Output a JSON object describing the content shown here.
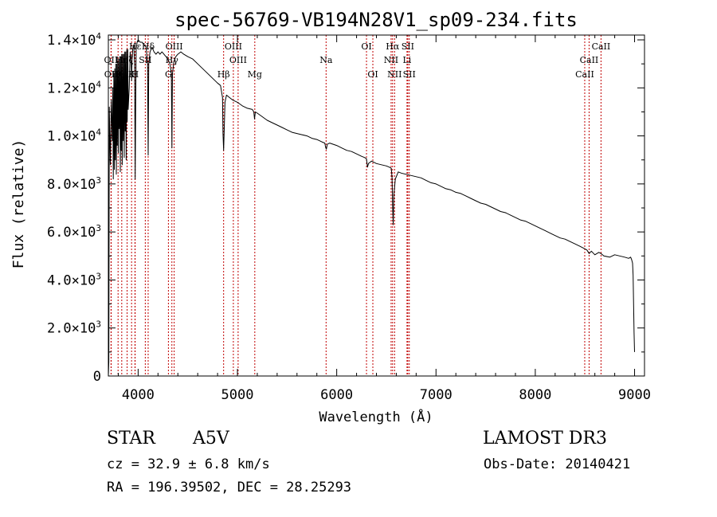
{
  "chart_data": {
    "type": "line",
    "title": "spec-56769-VB194N28V1_sp09-234.fits",
    "xlabel": "Wavelength (Å)",
    "ylabel": "Flux (relative)",
    "xlim": [
      3700,
      9100
    ],
    "ylim": [
      0,
      14200
    ],
    "x_ticks": [
      4000,
      5000,
      6000,
      7000,
      8000,
      9000
    ],
    "x_tick_labels": [
      "4000",
      "5000",
      "6000",
      "7000",
      "8000",
      "9000"
    ],
    "y_ticks": [
      0,
      2000,
      4000,
      6000,
      8000,
      10000,
      12000,
      14000
    ],
    "y_tick_labels": [
      {
        "mant": "0",
        "exp": ""
      },
      {
        "mant": "2.0×10",
        "exp": "3"
      },
      {
        "mant": "4.0×10",
        "exp": "3"
      },
      {
        "mant": "6.0×10",
        "exp": "3"
      },
      {
        "mant": "8.0×10",
        "exp": "3"
      },
      {
        "mant": "1.0×10",
        "exp": "4"
      },
      {
        "mant": "1.2×10",
        "exp": "4"
      },
      {
        "mant": "1.4×10",
        "exp": "4"
      }
    ],
    "series": [
      {
        "name": "spectrum",
        "x": [
          3700,
          3705,
          3710,
          3720,
          3730,
          3740,
          3745,
          3750,
          3755,
          3760,
          3765,
          3770,
          3775,
          3780,
          3785,
          3790,
          3795,
          3800,
          3805,
          3810,
          3815,
          3820,
          3825,
          3830,
          3835,
          3840,
          3845,
          3850,
          3855,
          3860,
          3865,
          3870,
          3875,
          3880,
          3885,
          3890,
          3895,
          3900,
          3910,
          3920,
          3930,
          3934,
          3938,
          3945,
          3955,
          3965,
          3970,
          3975,
          3980,
          3990,
          4000,
          4020,
          4040,
          4060,
          4080,
          4095,
          4101,
          4107,
          4120,
          4140,
          4160,
          4180,
          4200,
          4220,
          4240,
          4260,
          4280,
          4300,
          4320,
          4335,
          4340,
          4346,
          4360,
          4380,
          4400,
          4430,
          4460,
          4500,
          4550,
          4600,
          4650,
          4700,
          4750,
          4800,
          4830,
          4850,
          4855,
          4861,
          4867,
          4875,
          4890,
          4920,
          4950,
          5000,
          5050,
          5100,
          5150,
          5165,
          5172,
          5180,
          5200,
          5250,
          5300,
          5350,
          5400,
          5450,
          5500,
          5550,
          5600,
          5650,
          5700,
          5750,
          5800,
          5850,
          5880,
          5890,
          5896,
          5905,
          5930,
          6000,
          6050,
          6100,
          6150,
          6200,
          6250,
          6280,
          6300,
          6310,
          6320,
          6350,
          6400,
          6450,
          6500,
          6530,
          6550,
          6557,
          6563,
          6569,
          6575,
          6590,
          6620,
          6650,
          6700,
          6750,
          6800,
          6850,
          6900,
          6950,
          7000,
          7050,
          7100,
          7150,
          7200,
          7250,
          7300,
          7350,
          7400,
          7450,
          7500,
          7550,
          7600,
          7650,
          7700,
          7750,
          7800,
          7850,
          7900,
          7950,
          8000,
          8050,
          8100,
          8150,
          8200,
          8250,
          8300,
          8350,
          8400,
          8450,
          8498,
          8520,
          8542,
          8565,
          8600,
          8640,
          8662,
          8690,
          8750,
          8800,
          8850,
          8900,
          8940,
          8960,
          8970,
          8980,
          8985,
          8990,
          8995,
          9000
        ],
        "y": [
          0,
          600,
          11200,
          8800,
          11500,
          9800,
          12000,
          8200,
          12600,
          8600,
          12800,
          9000,
          13000,
          8400,
          13000,
          9600,
          13100,
          9300,
          13200,
          10300,
          13300,
          8500,
          13300,
          9400,
          13400,
          8800,
          13400,
          9800,
          13400,
          9100,
          13500,
          10200,
          13500,
          9000,
          13600,
          10600,
          13600,
          11100,
          12000,
          13500,
          13000,
          12300,
          13100,
          13600,
          13800,
          13000,
          8200,
          11200,
          13600,
          13900,
          14000,
          13900,
          13900,
          13800,
          13700,
          13000,
          9200,
          13000,
          13500,
          13700,
          13500,
          13400,
          13500,
          13400,
          13500,
          13400,
          13300,
          13200,
          13000,
          12600,
          9500,
          12600,
          13100,
          13300,
          13400,
          13500,
          13400,
          13300,
          13200,
          13000,
          12800,
          12600,
          12400,
          12200,
          12100,
          11600,
          10100,
          9400,
          10200,
          11400,
          11700,
          11600,
          11500,
          11400,
          11250,
          11150,
          11100,
          11000,
          10700,
          11000,
          10950,
          10800,
          10650,
          10550,
          10450,
          10350,
          10250,
          10150,
          10100,
          10050,
          10000,
          9900,
          9850,
          9750,
          9700,
          9500,
          9450,
          9650,
          9700,
          9600,
          9500,
          9400,
          9350,
          9250,
          9150,
          9100,
          9050,
          8700,
          8850,
          8950,
          8850,
          8800,
          8750,
          8700,
          8650,
          8250,
          7100,
          6300,
          7500,
          8200,
          8500,
          8450,
          8400,
          8350,
          8300,
          8250,
          8150,
          8050,
          8000,
          7900,
          7800,
          7750,
          7650,
          7600,
          7500,
          7400,
          7300,
          7200,
          7150,
          7050,
          6950,
          6850,
          6800,
          6700,
          6600,
          6500,
          6450,
          6350,
          6250,
          6150,
          6050,
          5950,
          5850,
          5750,
          5700,
          5600,
          5500,
          5400,
          5300,
          5250,
          5100,
          5200,
          5050,
          5150,
          5100,
          5000,
          4950,
          5050,
          5000,
          4950,
          4900,
          4950,
          4850,
          4700,
          4200,
          3000,
          1800,
          1000
        ]
      }
    ],
    "line_markers": [
      {
        "name": "Hε",
        "wavelength": 3970,
        "row": 0
      },
      {
        "name": "Hδ",
        "wavelength": 4101,
        "row": 0
      },
      {
        "name": "OIII",
        "wavelength": 4363,
        "row": 0
      },
      {
        "name": "OIII",
        "wavelength": 4959,
        "row": 0
      },
      {
        "name": "OI",
        "wavelength": 6300,
        "row": 0
      },
      {
        "name": "Hα",
        "wavelength": 6563,
        "row": 0
      },
      {
        "name": "SII",
        "wavelength": 6716,
        "row": 0
      },
      {
        "name": "CaII",
        "wavelength": 8662,
        "row": 0
      },
      {
        "name": "OII",
        "wavelength": 3727,
        "row": 1
      },
      {
        "name": "Hη",
        "wavelength": 3835,
        "row": 1
      },
      {
        "name": "Hζ",
        "wavelength": 3889,
        "row": 1
      },
      {
        "name": "SII",
        "wavelength": 4072,
        "row": 1
      },
      {
        "name": "Hγ",
        "wavelength": 4340,
        "row": 1
      },
      {
        "name": "OIII",
        "wavelength": 5007,
        "row": 1
      },
      {
        "name": "Na",
        "wavelength": 5893,
        "row": 1
      },
      {
        "name": "NII",
        "wavelength": 6548,
        "row": 1
      },
      {
        "name": "Li",
        "wavelength": 6708,
        "row": 1
      },
      {
        "name": "CaII",
        "wavelength": 8542,
        "row": 1
      },
      {
        "name": "OII",
        "wavelength": 3729,
        "row": 2
      },
      {
        "name": "Hθ",
        "wavelength": 3798,
        "row": 2
      },
      {
        "name": "K",
        "wavelength": 3934,
        "row": 2
      },
      {
        "name": "H",
        "wavelength": 3968,
        "row": 2
      },
      {
        "name": "G",
        "wavelength": 4305,
        "row": 2
      },
      {
        "name": "Hβ",
        "wavelength": 4861,
        "row": 2
      },
      {
        "name": "Mg",
        "wavelength": 5175,
        "row": 2
      },
      {
        "name": "OI",
        "wavelength": 6364,
        "row": 2
      },
      {
        "name": "NII",
        "wavelength": 6583,
        "row": 2
      },
      {
        "name": "SII",
        "wavelength": 6731,
        "row": 2
      },
      {
        "name": "CaII",
        "wavelength": 8498,
        "row": 2
      }
    ]
  },
  "info": {
    "object_class": "STAR",
    "subclass": "A5V",
    "survey": "LAMOST DR3",
    "redshift": "cz = 32.9 ± 6.8 km/s",
    "obs_date": "Obs-Date: 20140421",
    "coords": "RA = 196.39502, DEC =  28.25293"
  },
  "colors": {
    "spectrum": "#000000",
    "marker_line": "#c00000",
    "axis": "#000000",
    "background": "#ffffff"
  }
}
